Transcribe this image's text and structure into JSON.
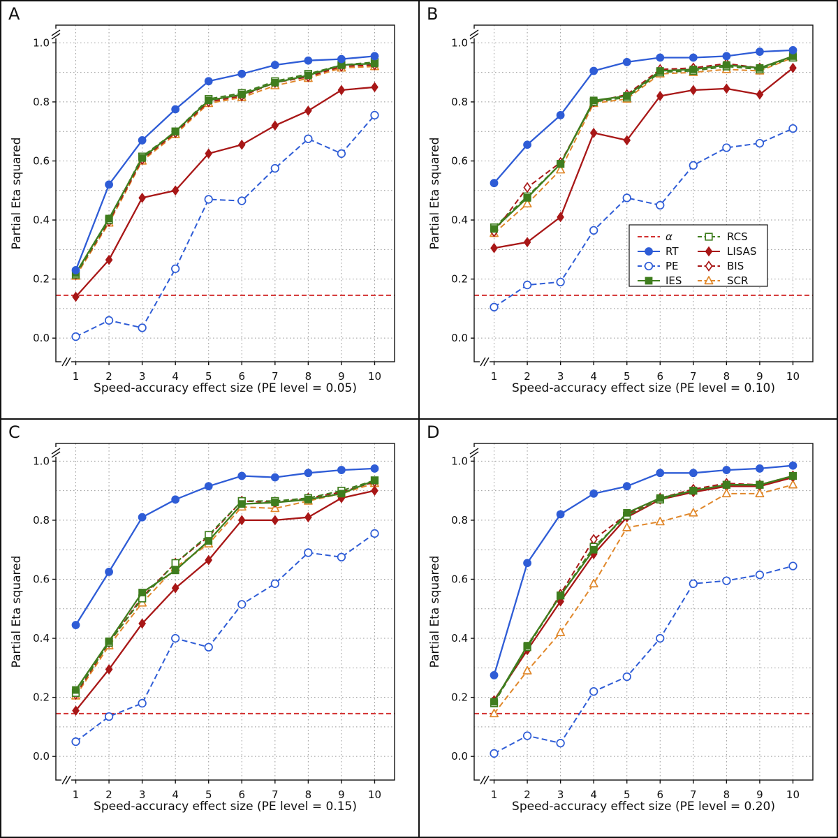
{
  "figure_title": "",
  "ylabel": "Partial Eta squared",
  "series_styles": {
    "alpha": {
      "color": "#d23030",
      "line": "dashed",
      "marker": "none",
      "fill": false
    },
    "RT": {
      "color": "#2e5cd6",
      "line": "solid",
      "marker": "circle",
      "fill": true
    },
    "PE": {
      "color": "#2e5cd6",
      "line": "dashed",
      "marker": "circle",
      "fill": false
    },
    "IES": {
      "color": "#3f7d1e",
      "line": "solid",
      "marker": "square",
      "fill": true
    },
    "RCS": {
      "color": "#3f7d1e",
      "line": "dashed",
      "marker": "square",
      "fill": false
    },
    "LISAS": {
      "color": "#a81717",
      "line": "solid",
      "marker": "diamond",
      "fill": true
    },
    "BIS": {
      "color": "#a81717",
      "line": "dashed",
      "marker": "diamond",
      "fill": false
    },
    "SCR": {
      "color": "#e0872a",
      "line": "dashed",
      "marker": "triangle",
      "fill": false
    }
  },
  "draw_order": [
    "PE",
    "LISAS",
    "SCR",
    "BIS",
    "RCS",
    "IES",
    "RT"
  ],
  "legend": {
    "col1": [
      {
        "key": "alpha",
        "label": "α"
      },
      {
        "key": "RT",
        "label": "RT"
      },
      {
        "key": "PE",
        "label": "PE"
      },
      {
        "key": "IES",
        "label": "IES"
      }
    ],
    "col2": [
      {
        "key": "RCS",
        "label": "RCS"
      },
      {
        "key": "LISAS",
        "label": "LISAS"
      },
      {
        "key": "BIS",
        "label": "BIS"
      },
      {
        "key": "SCR",
        "label": "SCR"
      }
    ]
  },
  "chart_data": [
    {
      "type": "line",
      "panel_label": "A",
      "xlabel": "Speed-accuracy effect size (PE level = 0.05)",
      "ylabel": "Partial Eta squared",
      "x": [
        1,
        2,
        3,
        4,
        5,
        6,
        7,
        8,
        9,
        10
      ],
      "xlim": [
        0.4,
        10.6
      ],
      "ylim": [
        -0.08,
        1.06
      ],
      "yticks": [
        0.0,
        0.2,
        0.4,
        0.6,
        0.8,
        1.0
      ],
      "grid": "dotted",
      "alpha_line": 0.145,
      "legend_inside": false,
      "series": [
        {
          "name": "RT",
          "values": [
            0.23,
            0.52,
            0.67,
            0.775,
            0.87,
            0.895,
            0.925,
            0.94,
            0.945,
            0.955
          ]
        },
        {
          "name": "PE",
          "values": [
            0.005,
            0.06,
            0.035,
            0.235,
            0.47,
            0.465,
            0.575,
            0.675,
            0.625,
            0.755
          ]
        },
        {
          "name": "IES",
          "values": [
            0.22,
            0.405,
            0.61,
            0.7,
            0.805,
            0.825,
            0.865,
            0.89,
            0.925,
            0.93
          ]
        },
        {
          "name": "RCS",
          "values": [
            0.215,
            0.4,
            0.615,
            0.7,
            0.81,
            0.83,
            0.87,
            0.895,
            0.925,
            0.935
          ]
        },
        {
          "name": "LISAS",
          "values": [
            0.14,
            0.265,
            0.475,
            0.5,
            0.625,
            0.655,
            0.72,
            0.77,
            0.84,
            0.85
          ]
        },
        {
          "name": "BIS",
          "values": [
            0.215,
            0.395,
            0.605,
            0.695,
            0.8,
            0.82,
            0.865,
            0.885,
            0.92,
            0.925
          ]
        },
        {
          "name": "SCR",
          "values": [
            0.21,
            0.39,
            0.6,
            0.69,
            0.795,
            0.815,
            0.855,
            0.88,
            0.915,
            0.92
          ]
        }
      ]
    },
    {
      "type": "line",
      "panel_label": "B",
      "xlabel": "Speed-accuracy effect size (PE level = 0.10)",
      "ylabel": "Partial Eta squared",
      "x": [
        1,
        2,
        3,
        4,
        5,
        6,
        7,
        8,
        9,
        10
      ],
      "xlim": [
        0.4,
        10.6
      ],
      "ylim": [
        -0.08,
        1.06
      ],
      "yticks": [
        0.0,
        0.2,
        0.4,
        0.6,
        0.8,
        1.0
      ],
      "grid": "dotted",
      "alpha_line": 0.145,
      "legend_inside": true,
      "series": [
        {
          "name": "RT",
          "values": [
            0.525,
            0.655,
            0.755,
            0.905,
            0.935,
            0.95,
            0.95,
            0.955,
            0.97,
            0.975
          ]
        },
        {
          "name": "PE",
          "values": [
            0.105,
            0.18,
            0.19,
            0.365,
            0.475,
            0.45,
            0.585,
            0.645,
            0.66,
            0.71
          ]
        },
        {
          "name": "IES",
          "values": [
            0.37,
            0.475,
            0.59,
            0.805,
            0.82,
            0.905,
            0.91,
            0.925,
            0.915,
            0.955
          ]
        },
        {
          "name": "RCS",
          "values": [
            0.375,
            0.48,
            0.59,
            0.8,
            0.815,
            0.9,
            0.905,
            0.92,
            0.91,
            0.95
          ]
        },
        {
          "name": "LISAS",
          "values": [
            0.305,
            0.325,
            0.41,
            0.695,
            0.67,
            0.82,
            0.84,
            0.845,
            0.825,
            0.915
          ]
        },
        {
          "name": "BIS",
          "values": [
            0.36,
            0.51,
            0.595,
            0.8,
            0.825,
            0.91,
            0.915,
            0.93,
            0.915,
            0.955
          ]
        },
        {
          "name": "SCR",
          "values": [
            0.355,
            0.455,
            0.57,
            0.795,
            0.81,
            0.895,
            0.9,
            0.91,
            0.905,
            0.95
          ]
        }
      ]
    },
    {
      "type": "line",
      "panel_label": "C",
      "xlabel": "Speed-accuracy effect size (PE level = 0.15)",
      "ylabel": "Partial Eta squared",
      "x": [
        1,
        2,
        3,
        4,
        5,
        6,
        7,
        8,
        9,
        10
      ],
      "xlim": [
        0.4,
        10.6
      ],
      "ylim": [
        -0.08,
        1.06
      ],
      "yticks": [
        0.0,
        0.2,
        0.4,
        0.6,
        0.8,
        1.0
      ],
      "grid": "dotted",
      "alpha_line": 0.145,
      "legend_inside": false,
      "series": [
        {
          "name": "RT",
          "values": [
            0.445,
            0.625,
            0.81,
            0.87,
            0.915,
            0.95,
            0.945,
            0.96,
            0.97,
            0.975
          ]
        },
        {
          "name": "PE",
          "values": [
            0.05,
            0.135,
            0.18,
            0.4,
            0.37,
            0.515,
            0.585,
            0.69,
            0.675,
            0.755
          ]
        },
        {
          "name": "IES",
          "values": [
            0.225,
            0.39,
            0.555,
            0.63,
            0.73,
            0.855,
            0.86,
            0.87,
            0.89,
            0.935
          ]
        },
        {
          "name": "RCS",
          "values": [
            0.215,
            0.385,
            0.535,
            0.655,
            0.75,
            0.865,
            0.865,
            0.875,
            0.9,
            0.935
          ]
        },
        {
          "name": "LISAS",
          "values": [
            0.155,
            0.295,
            0.45,
            0.57,
            0.665,
            0.8,
            0.8,
            0.81,
            0.875,
            0.9
          ]
        },
        {
          "name": "BIS",
          "values": [
            0.21,
            0.385,
            0.54,
            0.655,
            0.745,
            0.865,
            0.86,
            0.875,
            0.895,
            0.93
          ]
        },
        {
          "name": "SCR",
          "values": [
            0.205,
            0.375,
            0.52,
            0.64,
            0.72,
            0.845,
            0.84,
            0.865,
            0.89,
            0.925
          ]
        }
      ]
    },
    {
      "type": "line",
      "panel_label": "D",
      "xlabel": "Speed-accuracy effect size (PE level = 0.20)",
      "ylabel": "Partial Eta squared",
      "x": [
        1,
        2,
        3,
        4,
        5,
        6,
        7,
        8,
        9,
        10
      ],
      "xlim": [
        0.4,
        10.6
      ],
      "ylim": [
        -0.08,
        1.06
      ],
      "yticks": [
        0.0,
        0.2,
        0.4,
        0.6,
        0.8,
        1.0
      ],
      "grid": "dotted",
      "alpha_line": 0.145,
      "legend_inside": false,
      "series": [
        {
          "name": "RT",
          "values": [
            0.275,
            0.655,
            0.82,
            0.89,
            0.915,
            0.96,
            0.96,
            0.97,
            0.975,
            0.985
          ]
        },
        {
          "name": "PE",
          "values": [
            0.01,
            0.07,
            0.045,
            0.22,
            0.27,
            0.4,
            0.585,
            0.595,
            0.615,
            0.645
          ]
        },
        {
          "name": "IES",
          "values": [
            0.185,
            0.375,
            0.545,
            0.7,
            0.825,
            0.875,
            0.9,
            0.92,
            0.92,
            0.95
          ]
        },
        {
          "name": "RCS",
          "values": [
            0.18,
            0.37,
            0.545,
            0.71,
            0.815,
            0.87,
            0.9,
            0.92,
            0.92,
            0.95
          ]
        },
        {
          "name": "LISAS",
          "values": [
            0.19,
            0.36,
            0.525,
            0.685,
            0.81,
            0.87,
            0.895,
            0.915,
            0.915,
            0.945
          ]
        },
        {
          "name": "BIS",
          "values": [
            0.185,
            0.37,
            0.55,
            0.735,
            0.82,
            0.875,
            0.905,
            0.925,
            0.92,
            0.95
          ]
        },
        {
          "name": "SCR",
          "values": [
            0.145,
            0.29,
            0.42,
            0.585,
            0.775,
            0.795,
            0.825,
            0.89,
            0.89,
            0.92
          ]
        }
      ]
    }
  ]
}
